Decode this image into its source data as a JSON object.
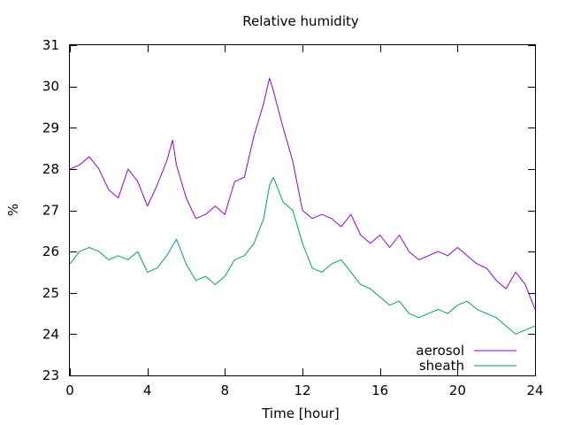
{
  "chart_data": {
    "type": "line",
    "title": "Relative humidity",
    "xlabel": "Time [hour]",
    "ylabel": "%",
    "xlim": [
      0,
      24
    ],
    "ylim": [
      23,
      31
    ],
    "xticks": [
      0,
      4,
      8,
      12,
      16,
      20,
      24
    ],
    "yticks": [
      23,
      24,
      25,
      26,
      27,
      28,
      29,
      30,
      31
    ],
    "grid": false,
    "legend_position": "bottom-right",
    "series": [
      {
        "name": "aerosol",
        "color": "#9400d3",
        "x": [
          0,
          0.5,
          1,
          1.5,
          2,
          2.5,
          3,
          3.5,
          4,
          4.5,
          5,
          5.3,
          5.5,
          6,
          6.5,
          7,
          7.5,
          8,
          8.5,
          9,
          9.5,
          10,
          10.3,
          10.5,
          11,
          11.5,
          12,
          12.5,
          13,
          13.5,
          14,
          14.5,
          15,
          15.5,
          16,
          16.5,
          17,
          17.5,
          18,
          18.5,
          19,
          19.5,
          20,
          20.5,
          21,
          21.5,
          22,
          22.5,
          23,
          23.5,
          24
        ],
        "y": [
          28.0,
          28.1,
          28.3,
          28.0,
          27.5,
          27.3,
          28.0,
          27.7,
          27.1,
          27.6,
          28.2,
          28.7,
          28.1,
          27.3,
          26.8,
          26.9,
          27.1,
          26.9,
          27.7,
          27.8,
          28.8,
          29.6,
          30.2,
          29.9,
          29.0,
          28.2,
          27.0,
          26.8,
          26.9,
          26.8,
          26.6,
          26.9,
          26.4,
          26.2,
          26.4,
          26.1,
          26.4,
          26.0,
          25.8,
          25.9,
          26.0,
          25.9,
          26.1,
          25.9,
          25.7,
          25.6,
          25.3,
          25.1,
          25.5,
          25.2,
          24.6
        ]
      },
      {
        "name": "sheath",
        "color": "#009e73",
        "x": [
          0,
          0.5,
          1,
          1.5,
          2,
          2.5,
          3,
          3.5,
          4,
          4.5,
          5,
          5.5,
          6,
          6.5,
          7,
          7.5,
          8,
          8.5,
          9,
          9.5,
          10,
          10.3,
          10.5,
          11,
          11.5,
          12,
          12.5,
          13,
          13.5,
          14,
          14.5,
          15,
          15.5,
          16,
          16.5,
          17,
          17.5,
          18,
          18.5,
          19,
          19.5,
          20,
          20.5,
          21,
          21.5,
          22,
          22.5,
          23,
          23.5,
          24
        ],
        "y": [
          25.7,
          26.0,
          26.1,
          26.0,
          25.8,
          25.9,
          25.8,
          26.0,
          25.5,
          25.6,
          25.9,
          26.3,
          25.7,
          25.3,
          25.4,
          25.2,
          25.4,
          25.8,
          25.9,
          26.2,
          26.8,
          27.6,
          27.8,
          27.2,
          27.0,
          26.2,
          25.6,
          25.5,
          25.7,
          25.8,
          25.5,
          25.2,
          25.1,
          24.9,
          24.7,
          24.8,
          24.5,
          24.4,
          24.5,
          24.6,
          24.5,
          24.7,
          24.8,
          24.6,
          24.5,
          24.4,
          24.2,
          24.0,
          24.1,
          24.2
        ]
      }
    ]
  }
}
